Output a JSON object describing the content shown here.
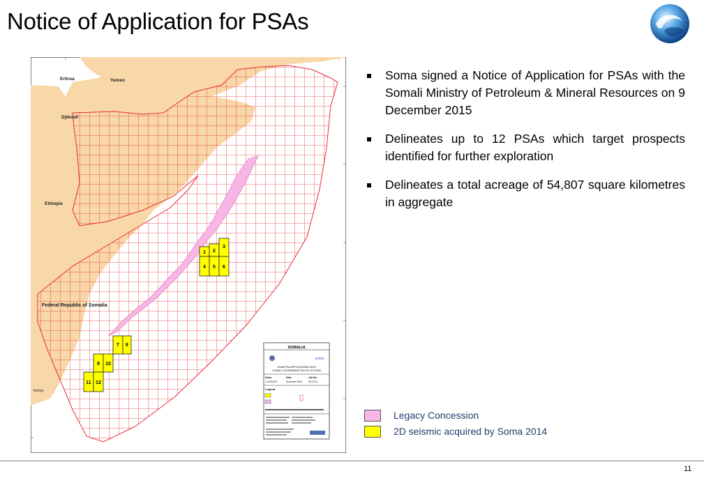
{
  "slide": {
    "title": "Notice of Application for PSAs",
    "page_number": "11"
  },
  "bullets": [
    "Soma signed a Notice of Application for PSAs with the Somali Ministry of Petroleum & Mineral Resources on 9 December 2015",
    "Delineates up to 12 PSAs which target prospects identified for further exploration",
    "Delineates a total acreage of 54,807 square kilometres in aggregate"
  ],
  "map": {
    "labels": {
      "eritrea": "Eritrea",
      "yemen": "Yemen",
      "djibouti": "Djibouti",
      "ethiopia": "Ethiopia",
      "somalia": "Federal Republic of Somalia",
      "kenya": "Kenya"
    },
    "blocks": [
      "1",
      "2",
      "3",
      "4",
      "5",
      "6",
      "7",
      "8",
      "9",
      "10",
      "11",
      "12"
    ],
    "titlebox": {
      "country": "SOMALIA",
      "logo_text": "soma",
      "subtitle1": "SOMA PSA APPLICATIONS WITH",
      "subtitle2": "SOMALI GOVERNMENT BLOCK SYSTEM",
      "scale_label": "Scale:",
      "scale_value": "1:3,000,000",
      "date_label": "Date:",
      "date_value": "December 2014",
      "job_label": "Job No:",
      "job_value": "SO-0713",
      "legend_label": "Legend"
    }
  },
  "legend": [
    {
      "label": "Legacy Concession",
      "color": "#f7b6e6"
    },
    {
      "label": "2D seismic acquired by Soma 2014",
      "color": "#ffff00"
    }
  ],
  "colors": {
    "land": "#f8d7a8",
    "grid": "#e8202a",
    "pink": "#f7b6e6",
    "yellow": "#ffff00",
    "text_blue": "#1f3e6e"
  }
}
